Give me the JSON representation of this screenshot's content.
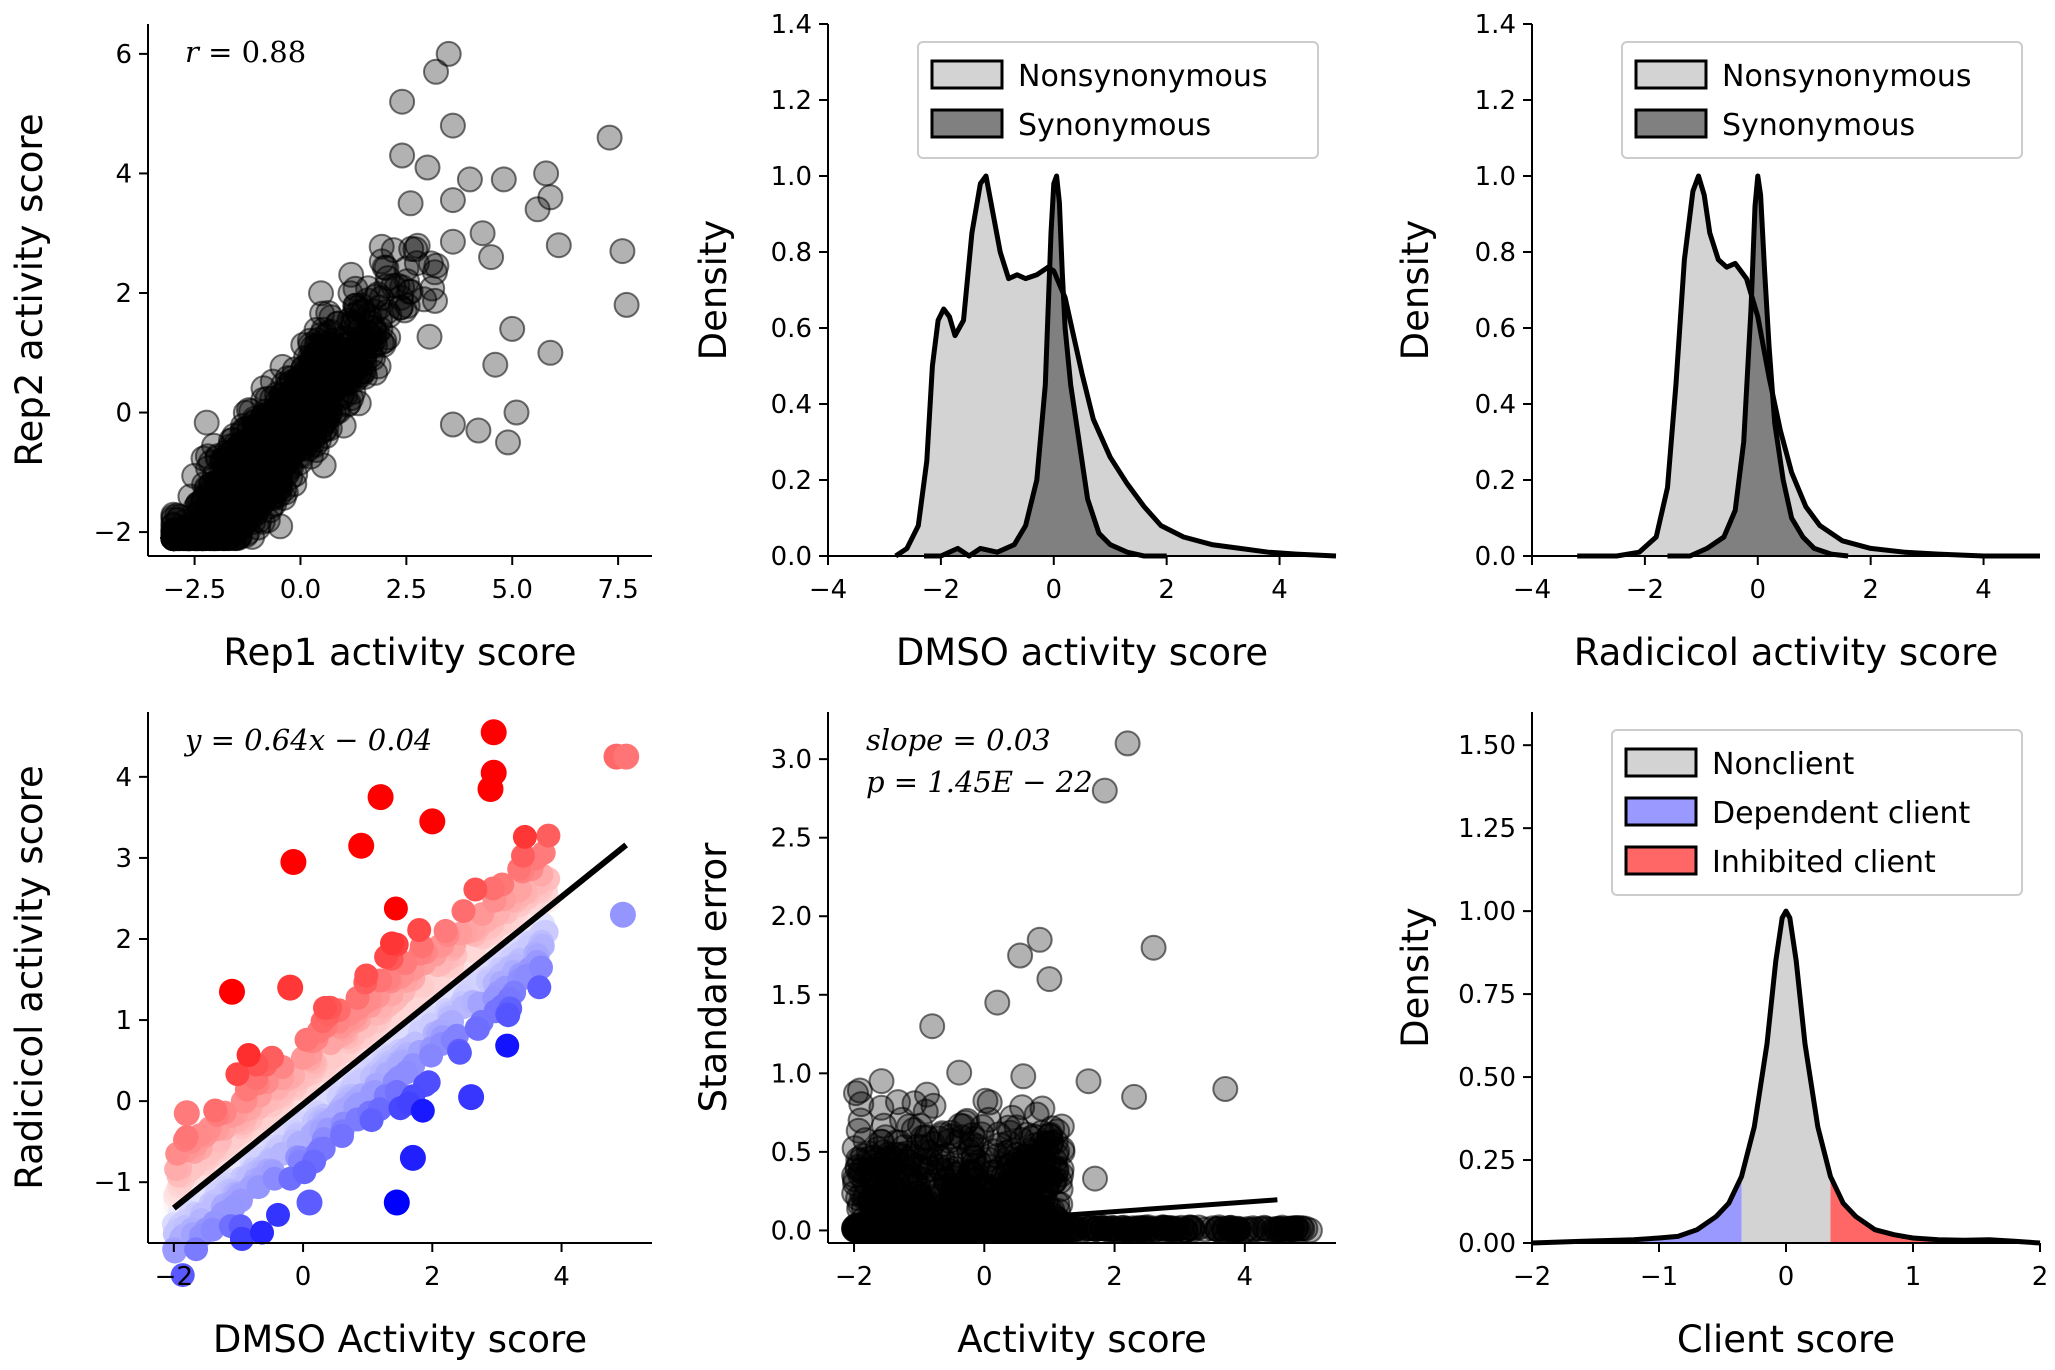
{
  "chart_data": [
    {
      "id": "A",
      "type": "scatter",
      "xlabel": "Rep1 activity score",
      "ylabel": "Rep2 activity score",
      "annotation": {
        "symbol": "r",
        "text": " = 0.88"
      },
      "xlim": [
        -3.6,
        8.3
      ],
      "ylim": [
        -2.4,
        6.5
      ],
      "xticks": [
        -2.5,
        0.0,
        2.5,
        5.0,
        7.5
      ],
      "xtick_labels": [
        "−2.5",
        "0.0",
        "2.5",
        "5.0",
        "7.5"
      ],
      "yticks": [
        -2,
        0,
        2,
        4,
        6
      ],
      "ytick_labels": [
        "−2",
        "0",
        "2",
        "4",
        "6"
      ],
      "marker_color": "#000000",
      "marker_alpha": 0.3,
      "bulk_trend": {
        "slope": 0.85,
        "intercept": 0.0,
        "x_range": [
          -3.0,
          3.5
        ]
      },
      "outliers": [
        [
          3.5,
          6.0
        ],
        [
          3.2,
          5.7
        ],
        [
          2.4,
          5.2
        ],
        [
          7.3,
          4.6
        ],
        [
          7.6,
          2.7
        ],
        [
          7.7,
          1.8
        ],
        [
          6.1,
          2.8
        ],
        [
          5.9,
          3.6
        ],
        [
          5.6,
          3.4
        ],
        [
          5.8,
          4.0
        ],
        [
          4.8,
          3.9
        ],
        [
          4.3,
          3.0
        ],
        [
          4.5,
          2.6
        ],
        [
          5.0,
          1.4
        ],
        [
          5.1,
          0.0
        ],
        [
          4.6,
          0.8
        ],
        [
          4.2,
          -0.3
        ],
        [
          3.6,
          -0.2
        ],
        [
          4.0,
          3.9
        ],
        [
          2.4,
          4.3
        ],
        [
          3.0,
          4.1
        ],
        [
          2.6,
          3.5
        ],
        [
          5.9,
          1.0
        ],
        [
          4.9,
          -0.5
        ],
        [
          3.6,
          4.8
        ]
      ]
    },
    {
      "id": "B",
      "type": "area",
      "xlabel": "DMSO activity score",
      "ylabel": "Density",
      "xlim": [
        -4,
        5
      ],
      "ylim": [
        0,
        1.4
      ],
      "xticks": [
        -4,
        -2,
        0,
        2,
        4
      ],
      "xtick_labels": [
        "−4",
        "−2",
        "0",
        "2",
        "4"
      ],
      "yticks": [
        0.0,
        0.2,
        0.4,
        0.6,
        0.8,
        1.0,
        1.2,
        1.4
      ],
      "ytick_labels": [
        "0.0",
        "0.2",
        "0.4",
        "0.6",
        "0.8",
        "1.0",
        "1.2",
        "1.4"
      ],
      "legend_position": "top-right",
      "series": [
        {
          "name": "Nonsynonymous",
          "color": "#d3d3d3",
          "x": [
            -2.8,
            -2.6,
            -2.4,
            -2.25,
            -2.15,
            -2.05,
            -1.95,
            -1.85,
            -1.75,
            -1.6,
            -1.45,
            -1.3,
            -1.2,
            -1.1,
            -0.95,
            -0.8,
            -0.65,
            -0.5,
            -0.3,
            -0.1,
            0.0,
            0.2,
            0.35,
            0.5,
            0.7,
            1.0,
            1.3,
            1.6,
            1.9,
            2.3,
            2.8,
            3.3,
            3.8,
            4.3,
            5.0
          ],
          "y": [
            0.0,
            0.02,
            0.08,
            0.25,
            0.5,
            0.62,
            0.65,
            0.63,
            0.58,
            0.62,
            0.85,
            0.98,
            1.0,
            0.92,
            0.8,
            0.73,
            0.74,
            0.73,
            0.74,
            0.76,
            0.75,
            0.68,
            0.58,
            0.48,
            0.36,
            0.26,
            0.19,
            0.13,
            0.08,
            0.05,
            0.03,
            0.02,
            0.01,
            0.005,
            0.0
          ]
        },
        {
          "name": "Synonymous",
          "color": "#808080",
          "x": [
            -2.3,
            -2.0,
            -1.7,
            -1.5,
            -1.3,
            -1.0,
            -0.7,
            -0.5,
            -0.3,
            -0.15,
            -0.05,
            0.0,
            0.05,
            0.1,
            0.15,
            0.2,
            0.3,
            0.45,
            0.6,
            0.8,
            1.0,
            1.3,
            1.6,
            2.0
          ],
          "y": [
            0.0,
            0.0,
            0.02,
            0.0,
            0.02,
            0.01,
            0.03,
            0.08,
            0.2,
            0.45,
            0.85,
            0.98,
            1.0,
            0.93,
            0.75,
            0.6,
            0.45,
            0.3,
            0.15,
            0.06,
            0.03,
            0.01,
            0.0,
            0.0
          ]
        }
      ]
    },
    {
      "id": "C",
      "type": "area",
      "xlabel": "Radicicol activity score",
      "ylabel": "Density",
      "xlim": [
        -4,
        5
      ],
      "ylim": [
        0,
        1.4
      ],
      "xticks": [
        -4,
        -2,
        0,
        2,
        4
      ],
      "xtick_labels": [
        "−4",
        "−2",
        "0",
        "2",
        "4"
      ],
      "yticks": [
        0.0,
        0.2,
        0.4,
        0.6,
        0.8,
        1.0,
        1.2,
        1.4
      ],
      "ytick_labels": [
        "0.0",
        "0.2",
        "0.4",
        "0.6",
        "0.8",
        "1.0",
        "1.2",
        "1.4"
      ],
      "legend_position": "top-right",
      "series": [
        {
          "name": "Nonsynonymous",
          "color": "#d3d3d3",
          "x": [
            -3.2,
            -2.5,
            -2.1,
            -1.8,
            -1.6,
            -1.45,
            -1.3,
            -1.15,
            -1.05,
            -0.95,
            -0.85,
            -0.7,
            -0.55,
            -0.4,
            -0.2,
            0.0,
            0.2,
            0.4,
            0.6,
            0.85,
            1.1,
            1.5,
            2.0,
            2.6,
            3.2,
            4.0,
            5.0
          ],
          "y": [
            0.0,
            0.0,
            0.01,
            0.05,
            0.18,
            0.45,
            0.78,
            0.96,
            1.0,
            0.95,
            0.85,
            0.78,
            0.76,
            0.77,
            0.73,
            0.63,
            0.47,
            0.33,
            0.22,
            0.13,
            0.08,
            0.04,
            0.02,
            0.01,
            0.005,
            0.0,
            0.0
          ]
        },
        {
          "name": "Synonymous",
          "color": "#808080",
          "x": [
            -1.6,
            -1.2,
            -0.9,
            -0.6,
            -0.4,
            -0.25,
            -0.12,
            -0.05,
            0.0,
            0.05,
            0.12,
            0.2,
            0.3,
            0.45,
            0.6,
            0.8,
            1.0,
            1.3,
            1.6
          ],
          "y": [
            0.0,
            0.0,
            0.02,
            0.05,
            0.12,
            0.3,
            0.65,
            0.92,
            1.0,
            0.95,
            0.75,
            0.55,
            0.35,
            0.2,
            0.1,
            0.05,
            0.02,
            0.005,
            0.0
          ]
        }
      ]
    },
    {
      "id": "D",
      "type": "scatter",
      "xlabel": "DMSO Activity score",
      "ylabel": "Radicicol activity score",
      "annotation": {
        "text": "y = 0.64x − 0.04"
      },
      "xlim": [
        -2.4,
        5.4
      ],
      "ylim": [
        -1.75,
        4.8
      ],
      "xticks": [
        -2,
        0,
        2,
        4
      ],
      "xtick_labels": [
        "−2",
        "0",
        "2",
        "4"
      ],
      "yticks": [
        -1,
        0,
        1,
        2,
        3,
        4
      ],
      "ytick_labels": [
        "−1",
        "0",
        "1",
        "2",
        "3",
        "4"
      ],
      "fit_line": {
        "slope": 0.64,
        "intercept": -0.04,
        "x_range": [
          -2.0,
          5.0
        ],
        "color": "#000000"
      },
      "colormap": "bwr",
      "colors": {
        "positive": "#ff0000",
        "neutral": "#ffffff",
        "negative": "#0000ff"
      },
      "bulk_trend": {
        "slope": 0.64,
        "intercept": -0.04,
        "x_range": [
          -2.1,
          3.9
        ]
      },
      "highlighted_points": [
        [
          -0.15,
          2.95
        ],
        [
          1.2,
          3.75
        ],
        [
          0.9,
          3.15
        ],
        [
          2.0,
          3.45
        ],
        [
          2.95,
          4.55
        ],
        [
          2.95,
          4.05
        ],
        [
          2.9,
          3.85
        ],
        [
          4.85,
          4.25
        ],
        [
          5.0,
          4.25
        ],
        [
          4.95,
          2.3
        ],
        [
          2.6,
          0.05
        ],
        [
          1.7,
          -0.7
        ],
        [
          1.45,
          -1.25
        ],
        [
          0.1,
          -1.25
        ],
        [
          -1.8,
          -0.15
        ],
        [
          -1.1,
          1.35
        ],
        [
          -0.2,
          1.4
        ]
      ]
    },
    {
      "id": "E",
      "type": "scatter",
      "xlabel": "Activity score",
      "ylabel": "Standard error",
      "annotation": {
        "line1": "slope = 0.03",
        "line2": "p = 1.45E − 22"
      },
      "xlim": [
        -2.4,
        5.4
      ],
      "ylim": [
        -0.08,
        3.3
      ],
      "xticks": [
        -2,
        0,
        2,
        4
      ],
      "xtick_labels": [
        "−2",
        "0",
        "2",
        "4"
      ],
      "yticks": [
        0.0,
        0.5,
        1.0,
        1.5,
        2.0,
        2.5,
        3.0
      ],
      "ytick_labels": [
        "0.0",
        "0.5",
        "1.0",
        "1.5",
        "2.0",
        "2.5",
        "3.0"
      ],
      "fit_line": {
        "slope": 0.03,
        "intercept": 0.06,
        "x_range": [
          -2.0,
          4.5
        ],
        "color": "#000000"
      },
      "marker_color": "#000000",
      "marker_alpha": 0.3,
      "outliers": [
        [
          2.2,
          3.1
        ],
        [
          1.85,
          2.8
        ],
        [
          2.6,
          1.8
        ],
        [
          0.85,
          1.85
        ],
        [
          0.55,
          1.75
        ],
        [
          1.0,
          1.6
        ],
        [
          0.2,
          1.45
        ],
        [
          -0.8,
          1.3
        ],
        [
          3.7,
          0.9
        ],
        [
          2.3,
          0.85
        ],
        [
          1.6,
          0.95
        ],
        [
          1.2,
          0.5
        ],
        [
          1.7,
          0.33
        ],
        [
          -1.9,
          0.7
        ],
        [
          -2.0,
          0.35
        ],
        [
          -0.9,
          0.1
        ],
        [
          4.0,
          0.0
        ],
        [
          4.5,
          0.0
        ],
        [
          5.0,
          0.0
        ],
        [
          3.2,
          0.0
        ]
      ]
    },
    {
      "id": "F",
      "type": "area",
      "xlabel": "Client score",
      "ylabel": "Density",
      "xlim": [
        -2,
        2
      ],
      "ylim": [
        0,
        1.6
      ],
      "xticks": [
        -2,
        -1,
        0,
        1,
        2
      ],
      "xtick_labels": [
        "−2",
        "−1",
        "0",
        "1",
        "2"
      ],
      "yticks": [
        0.0,
        0.25,
        0.5,
        0.75,
        1.0,
        1.25,
        1.5
      ],
      "ytick_labels": [
        "0.00",
        "0.25",
        "0.50",
        "0.75",
        "1.00",
        "1.25",
        "1.50"
      ],
      "legend_position": "top-right",
      "legend": [
        {
          "name": "Nonclient",
          "color": "#d3d3d3"
        },
        {
          "name": "Dependent client",
          "color": "#9999ff"
        },
        {
          "name": "Inhibited client",
          "color": "#ff6666"
        }
      ],
      "thresholds": [
        -0.35,
        0.35
      ],
      "x": [
        -2.0,
        -1.6,
        -1.2,
        -1.0,
        -0.85,
        -0.7,
        -0.55,
        -0.45,
        -0.35,
        -0.25,
        -0.15,
        -0.08,
        -0.03,
        0.0,
        0.03,
        0.08,
        0.15,
        0.25,
        0.35,
        0.45,
        0.55,
        0.7,
        0.85,
        1.0,
        1.2,
        1.4,
        1.6,
        1.8,
        2.0
      ],
      "y": [
        0.0,
        0.005,
        0.01,
        0.015,
        0.02,
        0.04,
        0.08,
        0.12,
        0.2,
        0.35,
        0.6,
        0.85,
        0.98,
        1.0,
        0.98,
        0.85,
        0.6,
        0.35,
        0.2,
        0.12,
        0.08,
        0.04,
        0.025,
        0.015,
        0.01,
        0.008,
        0.01,
        0.005,
        0.0
      ]
    }
  ]
}
